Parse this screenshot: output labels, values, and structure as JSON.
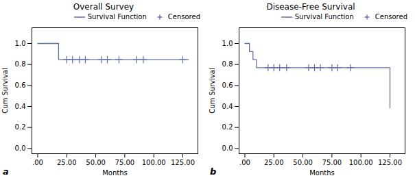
{
  "chart_data": [
    {
      "type": "line",
      "title": "Overall Survey",
      "x_label": "Months",
      "y_label": "Cum Survival",
      "annotation": "a",
      "xlim": [
        -5,
        138
      ],
      "ylim": [
        -0.05,
        1.15
      ],
      "xticks": [
        {
          "value": 0,
          "label": ".00"
        },
        {
          "value": 25,
          "label": "25.00"
        },
        {
          "value": 50,
          "label": "50.00"
        },
        {
          "value": 75,
          "label": "75.00"
        },
        {
          "value": 100,
          "label": "100.00"
        },
        {
          "value": 125,
          "label": "125.00"
        }
      ],
      "yticks": [
        {
          "value": 0,
          "label": "0.0"
        },
        0.2,
        0.4,
        0.6,
        0.8,
        {
          "value": 1,
          "label": "1.0"
        }
      ],
      "grid": false,
      "legend": "top",
      "series": [
        {
          "name": "Survival Function",
          "type": "step",
          "color": "#5E6FA3",
          "x": [
            0,
            18,
            18,
            130
          ],
          "values": [
            1.0,
            1.0,
            0.846,
            0.846
          ]
        },
        {
          "name": "Censored",
          "type": "scatter",
          "marker": "plus",
          "color": "#5E6FA3",
          "x": [
            25,
            30,
            36,
            41,
            55,
            60,
            70,
            85,
            91,
            125
          ],
          "values": [
            0.846,
            0.846,
            0.846,
            0.846,
            0.846,
            0.846,
            0.846,
            0.846,
            0.846,
            0.846
          ]
        }
      ]
    },
    {
      "type": "line",
      "title": "Disease-Free Survival",
      "x_label": "Months",
      "y_label": "Cum Survival",
      "annotation": "b",
      "xlim": [
        -5,
        138
      ],
      "ylim": [
        -0.05,
        1.15
      ],
      "xticks": [
        {
          "value": 0,
          "label": ".00"
        },
        {
          "value": 25,
          "label": "25.00"
        },
        {
          "value": 50,
          "label": "50.00"
        },
        {
          "value": 75,
          "label": "75.00"
        },
        {
          "value": 100,
          "label": "100.00"
        },
        {
          "value": 125,
          "label": "125.00"
        }
      ],
      "yticks": [
        {
          "value": 0,
          "label": "0.0"
        },
        0.2,
        0.4,
        0.6,
        0.8,
        {
          "value": 1,
          "label": "1.0"
        }
      ],
      "grid": false,
      "legend": "top",
      "series": [
        {
          "name": "Survival Function",
          "type": "step",
          "color": "#5E6FA3",
          "x": [
            0,
            4,
            4,
            7,
            7,
            10,
            10,
            14,
            14,
            125,
            125
          ],
          "values": [
            1.0,
            1.0,
            0.923,
            0.923,
            0.846,
            0.846,
            0.769,
            0.769,
            0.769,
            0.769,
            0.385
          ]
        },
        {
          "name": "Censored",
          "type": "scatter",
          "marker": "plus",
          "color": "#5E6FA3",
          "x": [
            20,
            25,
            30,
            36,
            55,
            60,
            65,
            75,
            80,
            91
          ],
          "values": [
            0.769,
            0.769,
            0.769,
            0.769,
            0.769,
            0.769,
            0.769,
            0.769,
            0.769,
            0.769
          ]
        }
      ]
    }
  ]
}
